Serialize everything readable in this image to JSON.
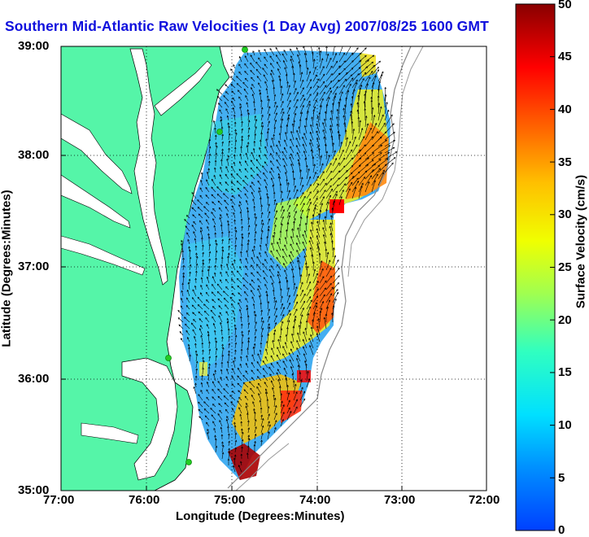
{
  "title": "Southern Mid-Atlantic Raw Velocities (1 Day Avg) 2007/08/25 1600 GMT",
  "axes": {
    "xlabel": "Longitude (Degrees:Minutes)",
    "ylabel": "Latitude (Degrees:Minutes)",
    "x_ticks": [
      "77:00",
      "76:00",
      "75:00",
      "74:00",
      "73:00",
      "72:00"
    ],
    "y_ticks": [
      "39:00",
      "38:00",
      "37:00",
      "36:00",
      "35:00"
    ],
    "xlim": [
      -77,
      -72
    ],
    "ylim": [
      35,
      39
    ],
    "grid": true
  },
  "colorbar": {
    "label": "Surface Velocity (cm/s)",
    "ticks": [
      "50",
      "45",
      "40",
      "35",
      "30",
      "25",
      "20",
      "15",
      "10",
      "5",
      "0"
    ],
    "range": [
      0,
      50
    ],
    "colormap": "jet"
  },
  "colors": {
    "land": "#55f5a8",
    "title": "#1010dd",
    "coast": "#000000",
    "shelf_break": "#888888",
    "station": "#22cc22"
  }
}
